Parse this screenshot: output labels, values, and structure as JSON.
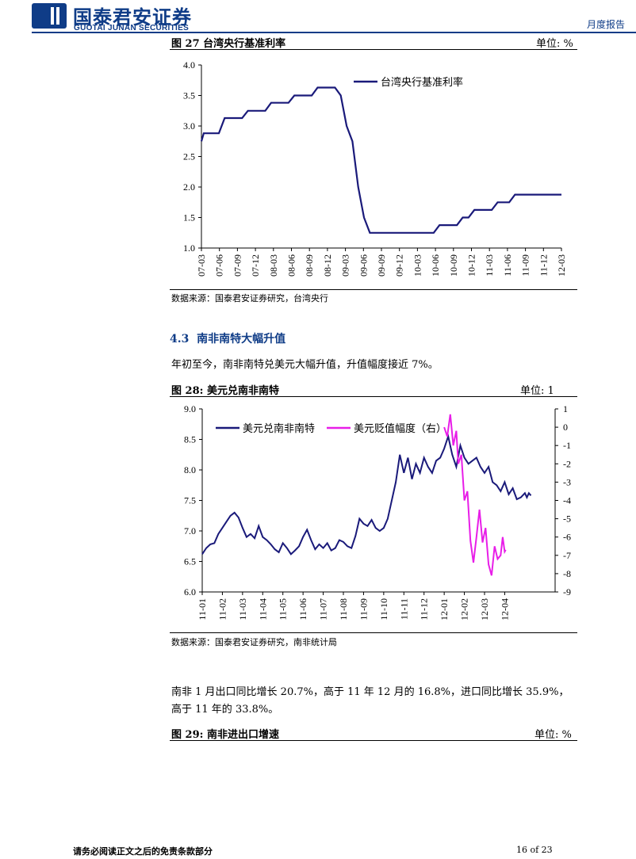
{
  "header": {
    "company_cn": "国泰君安证券",
    "company_en": "GUOTAI JUNAN SECURITIES",
    "report_type": "月度报告",
    "brand_color": "#0f3c87"
  },
  "figure27": {
    "title": "图 27 台湾央行基准利率",
    "unit": "单位: %",
    "source": "数据来源：国泰君安证券研究，台湾央行",
    "chart_data": {
      "type": "line",
      "series": [
        {
          "name": "台湾央行基准利率",
          "color": "#1a1a7a",
          "points": [
            [
              0,
              2.75
            ],
            [
              0.4,
              2.88
            ],
            [
              3,
              2.88
            ],
            [
              4,
              3.13
            ],
            [
              7,
              3.13
            ],
            [
              8,
              3.25
            ],
            [
              11,
              3.25
            ],
            [
              12,
              3.38
            ],
            [
              15,
              3.38
            ],
            [
              16,
              3.5
            ],
            [
              19,
              3.5
            ],
            [
              20,
              3.63
            ],
            [
              23,
              3.63
            ],
            [
              24,
              3.5
            ],
            [
              25,
              3.0
            ],
            [
              26,
              2.75
            ],
            [
              27,
              2.0
            ],
            [
              28,
              1.5
            ],
            [
              29,
              1.25
            ],
            [
              40,
              1.25
            ],
            [
              41,
              1.375
            ],
            [
              44,
              1.375
            ],
            [
              45,
              1.5
            ],
            [
              46,
              1.5
            ],
            [
              47,
              1.625
            ],
            [
              50,
              1.625
            ],
            [
              51,
              1.75
            ],
            [
              53,
              1.75
            ],
            [
              54,
              1.875
            ],
            [
              62,
              1.875
            ]
          ]
        }
      ],
      "x_ticks": [
        "07-03",
        "07-06",
        "07-09",
        "07-12",
        "08-03",
        "08-06",
        "08-09",
        "08-12",
        "09-03",
        "09-06",
        "09-09",
        "09-12",
        "10-03",
        "10-06",
        "10-09",
        "10-12",
        "11-03",
        "11-06",
        "11-09",
        "11-12",
        "12-03"
      ],
      "x_range": [
        0,
        62
      ],
      "y_ticks": [
        "1.0",
        "1.5",
        "2.0",
        "2.5",
        "3.0",
        "3.5",
        "4.0"
      ],
      "ylim": [
        1.0,
        4.0
      ],
      "legend_position": "top-right"
    }
  },
  "section": {
    "number": "4.3",
    "title": "南非南特大幅升值"
  },
  "para1": "年初至今，南非南特兑美元大幅升值，升值幅度接近 7%。",
  "figure28": {
    "title": "图 28: 美元兑南非南特",
    "unit": "单位: 1",
    "source": "数据来源：国泰君安证券研究，南非统计局",
    "chart_data": {
      "type": "line",
      "series": [
        {
          "name": "美元兑南非南特",
          "color": "#1a1a7a",
          "axis": "left",
          "points": [
            [
              0,
              6.62
            ],
            [
              0.2,
              6.72
            ],
            [
              0.4,
              6.78
            ],
            [
              0.6,
              6.8
            ],
            [
              0.8,
              6.95
            ],
            [
              1.0,
              7.05
            ],
            [
              1.2,
              7.15
            ],
            [
              1.4,
              7.25
            ],
            [
              1.6,
              7.3
            ],
            [
              1.8,
              7.22
            ],
            [
              2.0,
              7.05
            ],
            [
              2.2,
              6.9
            ],
            [
              2.4,
              6.95
            ],
            [
              2.6,
              6.88
            ],
            [
              2.8,
              7.08
            ],
            [
              3.0,
              6.9
            ],
            [
              3.2,
              6.85
            ],
            [
              3.4,
              6.78
            ],
            [
              3.6,
              6.7
            ],
            [
              3.8,
              6.65
            ],
            [
              4.0,
              6.8
            ],
            [
              4.2,
              6.72
            ],
            [
              4.4,
              6.62
            ],
            [
              4.6,
              6.68
            ],
            [
              4.8,
              6.75
            ],
            [
              5.0,
              6.9
            ],
            [
              5.2,
              7.02
            ],
            [
              5.4,
              6.85
            ],
            [
              5.6,
              6.7
            ],
            [
              5.8,
              6.78
            ],
            [
              6.0,
              6.72
            ],
            [
              6.2,
              6.8
            ],
            [
              6.4,
              6.68
            ],
            [
              6.6,
              6.72
            ],
            [
              6.8,
              6.85
            ],
            [
              7.0,
              6.82
            ],
            [
              7.2,
              6.75
            ],
            [
              7.4,
              6.72
            ],
            [
              7.6,
              6.92
            ],
            [
              7.8,
              7.2
            ],
            [
              8.0,
              7.12
            ],
            [
              8.2,
              7.08
            ],
            [
              8.4,
              7.18
            ],
            [
              8.6,
              7.05
            ],
            [
              8.8,
              7.0
            ],
            [
              9.0,
              7.05
            ],
            [
              9.2,
              7.2
            ],
            [
              9.4,
              7.5
            ],
            [
              9.6,
              7.8
            ],
            [
              9.8,
              8.25
            ],
            [
              10.0,
              7.95
            ],
            [
              10.2,
              8.2
            ],
            [
              10.4,
              7.85
            ],
            [
              10.6,
              8.1
            ],
            [
              10.8,
              7.95
            ],
            [
              11.0,
              8.2
            ],
            [
              11.2,
              8.05
            ],
            [
              11.4,
              7.95
            ],
            [
              11.6,
              8.15
            ],
            [
              11.8,
              8.2
            ],
            [
              12.0,
              8.35
            ],
            [
              12.2,
              8.55
            ],
            [
              12.4,
              8.25
            ],
            [
              12.6,
              8.05
            ],
            [
              12.8,
              8.4
            ],
            [
              13.0,
              8.2
            ],
            [
              13.2,
              8.1
            ],
            [
              13.4,
              8.15
            ],
            [
              13.6,
              8.2
            ],
            [
              13.8,
              8.05
            ],
            [
              14.0,
              7.95
            ],
            [
              14.2,
              8.05
            ],
            [
              14.4,
              7.8
            ],
            [
              14.6,
              7.75
            ],
            [
              14.8,
              7.65
            ],
            [
              15.0,
              7.8
            ],
            [
              15.2,
              7.6
            ],
            [
              15.4,
              7.7
            ],
            [
              15.6,
              7.52
            ],
            [
              15.8,
              7.55
            ],
            [
              16.0,
              7.62
            ],
            [
              16.1,
              7.55
            ],
            [
              16.2,
              7.62
            ],
            [
              16.3,
              7.58
            ]
          ]
        },
        {
          "name": "美元贬值幅度（右）",
          "color": "#e81ee8",
          "axis": "right",
          "points": [
            [
              12.0,
              0.0
            ],
            [
              12.15,
              -0.5
            ],
            [
              12.3,
              0.7
            ],
            [
              12.45,
              -1.0
            ],
            [
              12.6,
              -0.2
            ],
            [
              12.7,
              -2.0
            ],
            [
              12.85,
              -1.5
            ],
            [
              13.0,
              -4.0
            ],
            [
              13.15,
              -3.5
            ],
            [
              13.3,
              -6.2
            ],
            [
              13.45,
              -7.4
            ],
            [
              13.6,
              -6.0
            ],
            [
              13.75,
              -4.5
            ],
            [
              13.9,
              -6.3
            ],
            [
              14.05,
              -5.5
            ],
            [
              14.2,
              -7.5
            ],
            [
              14.35,
              -8.1
            ],
            [
              14.5,
              -6.5
            ],
            [
              14.65,
              -7.2
            ],
            [
              14.8,
              -7.0
            ],
            [
              14.9,
              -6.0
            ],
            [
              15.0,
              -6.8
            ],
            [
              15.05,
              -6.7
            ]
          ]
        }
      ],
      "x_ticks": [
        "11-01",
        "11-02",
        "11-03",
        "11-04",
        "11-05",
        "11-06",
        "11-07",
        "11-08",
        "11-09",
        "11-10",
        "11-11",
        "11-12",
        "12-01",
        "12-02",
        "12-03",
        "12-04"
      ],
      "x_range": [
        0,
        17.5
      ],
      "y_ticks": [
        "6.0",
        "6.5",
        "7.0",
        "7.5",
        "8.0",
        "8.5",
        "9.0"
      ],
      "ylim": [
        6.0,
        9.0
      ],
      "y2_ticks": [
        "-9",
        "-8",
        "-7",
        "-6",
        "-5",
        "-4",
        "-3",
        "-2",
        "-1",
        "0",
        "1"
      ],
      "y2lim": [
        -9,
        1
      ],
      "legend_position": "top-left"
    }
  },
  "para2_line1": "南非 1 月出口同比增长 20.7%，高于 11 年 12 月的 16.8%，进口同比增长 35.9%，",
  "para2_line2": "高于 11 年的 33.8%。",
  "figure29": {
    "title": "图 29: 南非进出口增速",
    "unit": "单位: %"
  },
  "footer": {
    "disclaimer": "请务必阅读正文之后的免责条款部分",
    "page": "16 of 23"
  }
}
